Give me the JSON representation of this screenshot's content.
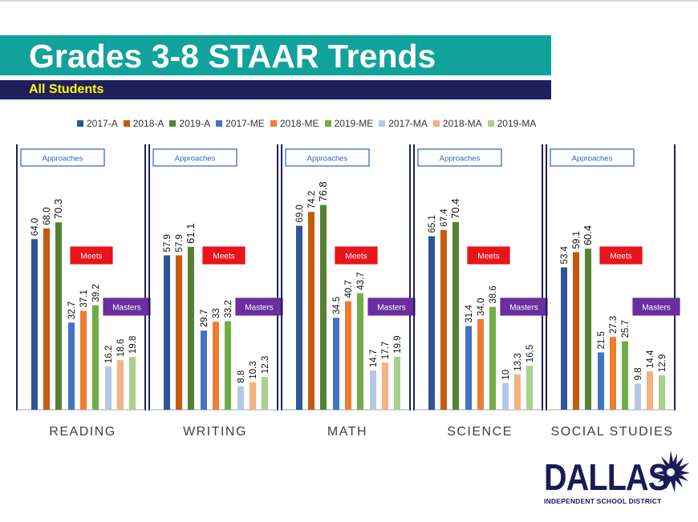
{
  "slide": {
    "title": "Grades 3-8 STAAR Trends",
    "subtitle": "All Students"
  },
  "colors": {
    "title_bar": "#12a29c",
    "subtitle_bar": "#1f1f5c",
    "subtitle_text": "#ffff00",
    "panel_border": "#1f1f5c",
    "approaches_box": "#2e63b8",
    "meets_box": "#e8151b",
    "masters_box": "#6a2e9e",
    "logo": "#1b1b5a"
  },
  "chart_data": {
    "type": "bar",
    "ylim": [
      0,
      100
    ],
    "legend": {
      "position": "top",
      "entries": [
        {
          "name": "2017-A",
          "color": "#2e5597"
        },
        {
          "name": "2018-A",
          "color": "#c55a11"
        },
        {
          "name": "2019-A",
          "color": "#548235"
        },
        {
          "name": "2017-ME",
          "color": "#4472c4"
        },
        {
          "name": "2018-ME",
          "color": "#ed7d31"
        },
        {
          "name": "2019-ME",
          "color": "#70ad47"
        },
        {
          "name": "2017-MA",
          "color": "#b4c7e7"
        },
        {
          "name": "2018-MA",
          "color": "#f4b183"
        },
        {
          "name": "2019-MA",
          "color": "#a9d18e"
        }
      ]
    },
    "groups": [
      {
        "label": "Approaches",
        "series": [
          "2017-A",
          "2018-A",
          "2019-A"
        ]
      },
      {
        "label": "Meets",
        "series": [
          "2017-ME",
          "2018-ME",
          "2019-ME"
        ]
      },
      {
        "label": "Masters",
        "series": [
          "2017-MA",
          "2018-MA",
          "2019-MA"
        ]
      }
    ],
    "panels": [
      {
        "subject": "READING",
        "values": [
          64.0,
          68.0,
          70.3,
          32.7,
          37.1,
          39.2,
          16.2,
          18.6,
          19.8
        ],
        "labels": [
          "64.0",
          "68.0",
          "70.3",
          "32.7",
          "37.1",
          "39.2",
          "16.2",
          "18.6",
          "19.8"
        ]
      },
      {
        "subject": "WRITING",
        "values": [
          57.9,
          57.9,
          61.1,
          29.7,
          33,
          33.2,
          8.8,
          10.3,
          12.3
        ],
        "labels": [
          "57.9",
          "57.9",
          "61.1",
          "29.7",
          "33",
          "33.2",
          "8.8",
          "10.3",
          "12.3"
        ]
      },
      {
        "subject": "MATH",
        "values": [
          69.0,
          74.2,
          76.8,
          34.5,
          40.7,
          43.7,
          14.7,
          17.7,
          19.9
        ],
        "labels": [
          "69.0",
          "74.2",
          "76.8",
          "34.5",
          "40.7",
          "43.7",
          "14.7",
          "17.7",
          "19.9"
        ]
      },
      {
        "subject": "SCIENCE",
        "values": [
          65.1,
          67.4,
          70.4,
          31.4,
          34.0,
          38.6,
          10,
          13.3,
          16.5
        ],
        "labels": [
          "65.1",
          "67.4",
          "70.4",
          "31.4",
          "34.0",
          "38.6",
          "10",
          "13.3",
          "16.5"
        ]
      },
      {
        "subject": "SOCIAL STUDIES",
        "values": [
          53.4,
          59.1,
          60.4,
          21.5,
          27.3,
          25.7,
          9.8,
          14.4,
          12.9
        ],
        "labels": [
          "53.4",
          "59.1",
          "60.4",
          "21.5",
          "27.3",
          "25.7",
          "9.8",
          "14.4",
          "12.9"
        ]
      }
    ]
  },
  "logo": {
    "word": "DALLAS",
    "tagline": "INDEPENDENT SCHOOL DISTRICT",
    "icon": "starburst-icon"
  }
}
